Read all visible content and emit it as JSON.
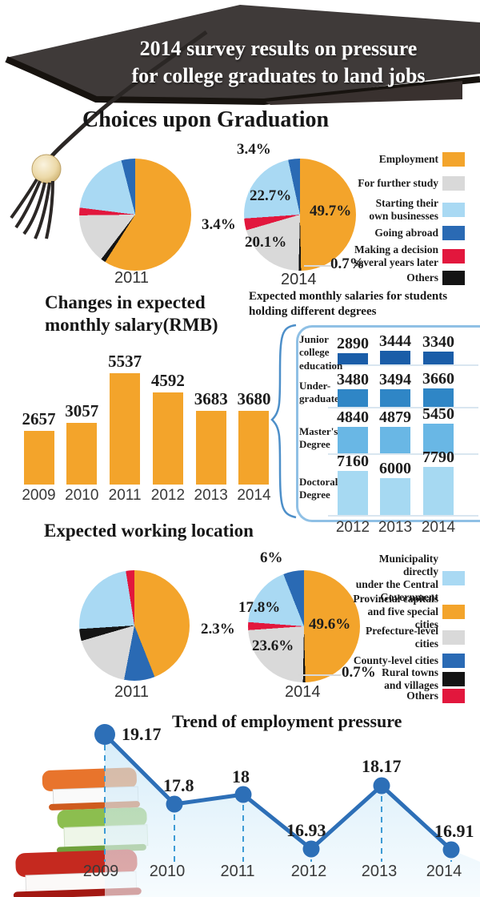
{
  "banner": {
    "line1": "2014 survey results on pressure",
    "line2": "for college graduates to land jobs"
  },
  "colors": {
    "orange": "#F3A42B",
    "gray": "#D9D9D9",
    "light_blue": "#A9D9F3",
    "dark_blue": "#2A6AB4",
    "red": "#E2173D",
    "black": "#141414",
    "trend_line_blue": "#2D6FB7",
    "trend_dash_blue": "#3D9BD5",
    "degrees_junior_blue": "#1A5DA8",
    "degrees_undergrad_blue": "#2F86C6",
    "degrees_master_blue": "#69B7E5",
    "degrees_doctoral_blue": "#A6D9F2"
  },
  "choices": {
    "heading": "Choices upon Graduation",
    "legend": [
      {
        "label": "Employment",
        "label_lines": [
          "Employment"
        ],
        "color": "#F3A42B"
      },
      {
        "label": "For further study",
        "label_lines": [
          "For further study"
        ],
        "color": "#D9D9D9"
      },
      {
        "label": "Starting their own businesses",
        "label_lines": [
          "Starting their",
          "own businesses"
        ],
        "color": "#A9D9F3"
      },
      {
        "label": "Going abroad",
        "label_lines": [
          "Going abroad"
        ],
        "color": "#2A6AB4"
      },
      {
        "label": "Making a decision several years later",
        "label_lines": [
          "Making a decision",
          "several years later"
        ],
        "color": "#E2173D"
      },
      {
        "label": "Others",
        "label_lines": [
          "Others"
        ],
        "color": "#141414"
      }
    ],
    "pies": {
      "p2011": {
        "year": "2011"
      },
      "p2014": {
        "year": "2014",
        "labels": [
          "3.4%",
          "22.7%",
          "3.4%",
          "20.1%",
          "49.7%",
          "0.7%"
        ]
      }
    }
  },
  "salary": {
    "title_line1": "Changes in expected",
    "title_line2": "monthly salary(RMB)"
  },
  "degrees": {
    "title_line1": "Expected monthly salaries for students",
    "title_line2": "holding different degrees",
    "rows": [
      {
        "label_lines": [
          "Junior",
          "college",
          "education"
        ]
      },
      {
        "label_lines": [
          "Under-",
          "graduate"
        ]
      },
      {
        "label_lines": [
          "Master's",
          "Degree"
        ]
      },
      {
        "label_lines": [
          "Doctoral",
          "Degree"
        ]
      }
    ]
  },
  "location": {
    "heading": "Expected working location",
    "legend": [
      {
        "label": "Municipality directly under the Central Government",
        "label_lines": [
          "Municipality directly",
          "under the Central",
          "Government"
        ],
        "color": "#A9D9F3"
      },
      {
        "label": "Provincial capitals and five special cities",
        "label_lines": [
          "Provincial capitals",
          "and five special cities"
        ],
        "color": "#F3A42B"
      },
      {
        "label": "Prefecture-level cities",
        "label_lines": [
          "Prefecture-level",
          "cities"
        ],
        "color": "#D9D9D9"
      },
      {
        "label": "County-level cities",
        "label_lines": [
          "County-level cities"
        ],
        "color": "#2A6AB4"
      },
      {
        "label": "Rural towns and villages",
        "label_lines": [
          "Rural towns",
          "and villages"
        ],
        "color": "#141414"
      },
      {
        "label": "Others",
        "label_lines": [
          "Others"
        ],
        "color": "#E2173D"
      }
    ],
    "pies": {
      "p2011": {
        "year": "2011"
      },
      "p2014": {
        "year": "2014",
        "labels": [
          "6%",
          "17.8%",
          "2.3%",
          "23.6%",
          "49.6%",
          "0.7%"
        ]
      }
    }
  },
  "trend": {
    "heading": "Trend of employment pressure"
  },
  "chart_data": [
    {
      "id": "choices_2011",
      "type": "pie",
      "title": "Choices upon Graduation - 2011",
      "labels": [
        "Employment",
        "For further study",
        "Starting their own businesses",
        "Going abroad",
        "Making a decision several years later",
        "Others"
      ],
      "values": [
        59,
        14.4,
        19,
        4,
        2.2,
        1.4
      ],
      "colors": [
        "#F3A42B",
        "#D9D9D9",
        "#A9D9F3",
        "#2A6AB4",
        "#E2173D",
        "#141414"
      ]
    },
    {
      "id": "choices_2014",
      "type": "pie",
      "title": "Choices upon Graduation - 2014",
      "labels": [
        "Employment",
        "For further study",
        "Starting their own businesses",
        "Going abroad",
        "Making a decision several years later",
        "Others"
      ],
      "values": [
        49.7,
        20.1,
        22.7,
        3.4,
        3.4,
        0.7
      ],
      "colors": [
        "#F3A42B",
        "#D9D9D9",
        "#A9D9F3",
        "#2A6AB4",
        "#E2173D",
        "#141414"
      ]
    },
    {
      "id": "salary",
      "type": "bar",
      "title": "Changes in expected monthly salary(RMB)",
      "categories": [
        "2009",
        "2010",
        "2011",
        "2012",
        "2013",
        "2014"
      ],
      "values": [
        2657,
        3057,
        5537,
        4592,
        3683,
        3680
      ],
      "bar_color": "#F3A42B"
    },
    {
      "id": "degrees",
      "type": "bar",
      "title": "Expected monthly salaries for students holding different degrees",
      "categories": [
        "2012",
        "2013",
        "2014"
      ],
      "series": [
        {
          "name": "Junior college education",
          "values": [
            2890,
            3444,
            3340
          ],
          "color": "#1A5DA8"
        },
        {
          "name": "Under-graduate",
          "values": [
            3480,
            3494,
            3660
          ],
          "color": "#2F86C6"
        },
        {
          "name": "Master's Degree",
          "values": [
            4840,
            4879,
            5450
          ],
          "color": "#69B7E5"
        },
        {
          "name": "Doctoral Degree",
          "values": [
            7160,
            6000,
            7790
          ],
          "color": "#A6D9F2"
        }
      ]
    },
    {
      "id": "location_2011",
      "type": "pie",
      "title": "Expected working location - 2011",
      "labels": [
        "Municipality directly under the Central Government",
        "Provincial capitals and five special cities",
        "Prefecture-level cities",
        "County-level cities",
        "Rural towns and villages",
        "Others"
      ],
      "values": [
        23.5,
        44,
        17.5,
        9,
        3.5,
        2.5
      ],
      "colors": [
        "#A9D9F3",
        "#F3A42B",
        "#D9D9D9",
        "#2A6AB4",
        "#141414",
        "#E2173D"
      ]
    },
    {
      "id": "location_2014",
      "type": "pie",
      "title": "Expected working location - 2014",
      "labels": [
        "Municipality directly under the Central Government",
        "Provincial capitals and five special cities",
        "Prefecture-level cities",
        "County-level cities",
        "Rural towns and villages",
        "Others"
      ],
      "values": [
        17.8,
        49.6,
        23.6,
        6,
        0.7,
        2.3
      ],
      "colors": [
        "#A9D9F3",
        "#F3A42B",
        "#D9D9D9",
        "#2A6AB4",
        "#141414",
        "#E2173D"
      ]
    },
    {
      "id": "trend",
      "type": "line",
      "title": "Trend of employment pressure",
      "x": [
        "2009",
        "2010",
        "2011",
        "2012",
        "2013",
        "2014"
      ],
      "y": [
        19.17,
        17.8,
        18,
        16.93,
        18.17,
        16.91
      ],
      "line_color": "#2D6FB7"
    }
  ]
}
